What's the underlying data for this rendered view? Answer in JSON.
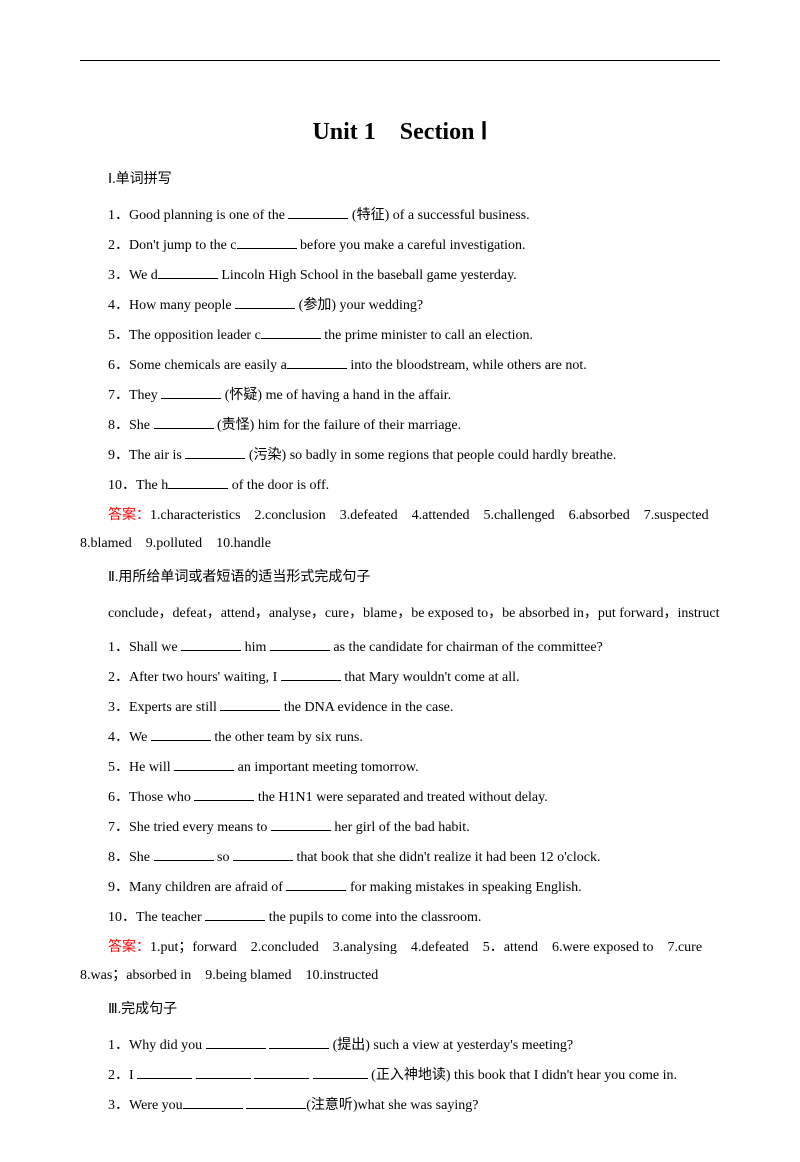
{
  "title": "Unit 1　Section Ⅰ",
  "section1": {
    "heading": "Ⅰ.单词拼写",
    "q1": {
      "num": "1．",
      "pre": "Good planning is one of the ",
      "post": " (特征) of a successful business."
    },
    "q2": {
      "num": "2．",
      "pre": "Don't jump to the c",
      "post": " before you make a careful investigation."
    },
    "q3": {
      "num": "3．",
      "pre": "We d",
      "post": " Lincoln High School in the baseball game yesterday."
    },
    "q4": {
      "num": "4．",
      "pre": "How many people ",
      "post": " (参加) your wedding?"
    },
    "q5": {
      "num": "5．",
      "pre": "The opposition leader c",
      "post": " the prime minister to call an election."
    },
    "q6": {
      "num": "6．",
      "pre": "Some chemicals are easily a",
      "post": " into the bloodstream, while others are not."
    },
    "q7": {
      "num": "7．",
      "pre": "They ",
      "post": " (怀疑) me of having a hand in the affair."
    },
    "q8": {
      "num": "8．",
      "pre": "She ",
      "post": " (责怪) him for the failure of their marriage."
    },
    "q9": {
      "num": "9．",
      "pre": "The air is ",
      "post": " (污染) so badly in some regions that people could hardly breathe."
    },
    "q10": {
      "num": "10．",
      "pre": "The h",
      "post": " of the door is off."
    },
    "answer_label": "答案：",
    "answer_text": "1.characteristics　2.conclusion　3.defeated　4.attended　5.challenged　6.absorbed　7.suspected　8.blamed　9.polluted　10.handle"
  },
  "section2": {
    "heading": "Ⅱ.用所给单词或者短语的适当形式完成句子",
    "wordbank": "conclude，defeat，attend，analyse，cure，blame，be exposed to，be absorbed in，put forward，instruct",
    "q1": {
      "num": "1．",
      "pre": "Shall we ",
      "mid": " him ",
      "post": " as the candidate for chairman of the committee?"
    },
    "q2": {
      "num": "2．",
      "pre": "After two hours' waiting, I ",
      "post": " that Mary wouldn't come at all."
    },
    "q3": {
      "num": "3．",
      "pre": "Experts are still ",
      "post": " the DNA evidence in the case."
    },
    "q4": {
      "num": "4．",
      "pre": "We ",
      "post": " the other team by six runs."
    },
    "q5": {
      "num": "5．",
      "pre": "He will ",
      "post": " an important meeting tomorrow."
    },
    "q6": {
      "num": "6．",
      "pre": "Those who ",
      "post": " the H1N1 were separated and treated without delay."
    },
    "q7": {
      "num": "7．",
      "pre": "She tried every means to ",
      "post": " her girl of the bad habit."
    },
    "q8": {
      "num": "8．",
      "pre": "She ",
      "mid": " so ",
      "post": " that book that she didn't realize it had been 12 o'clock."
    },
    "q9": {
      "num": "9．",
      "pre": "Many children are afraid of ",
      "post": " for making mistakes in speaking English."
    },
    "q10": {
      "num": "10．",
      "pre": "The teacher ",
      "post": " the pupils to come into the classroom."
    },
    "answer_label": "答案：",
    "answer_text": "1.put；forward　2.concluded　3.analysing　4.defeated　5．attend　6.were exposed to　7.cure　8.was；absorbed in　9.being blamed　10.instructed"
  },
  "section3": {
    "heading": "Ⅲ.完成句子",
    "q1": {
      "num": "1．",
      "pre": "Why did you ",
      "post": " (提出) such a view at yesterday's meeting?"
    },
    "q2": {
      "num": "2．",
      "pre": "I ",
      "post": " (正入神地读) this book that I didn't hear you come in."
    },
    "q3": {
      "num": "3．",
      "pre": "Were you",
      "post": "(注意听)what she was saying?"
    }
  }
}
